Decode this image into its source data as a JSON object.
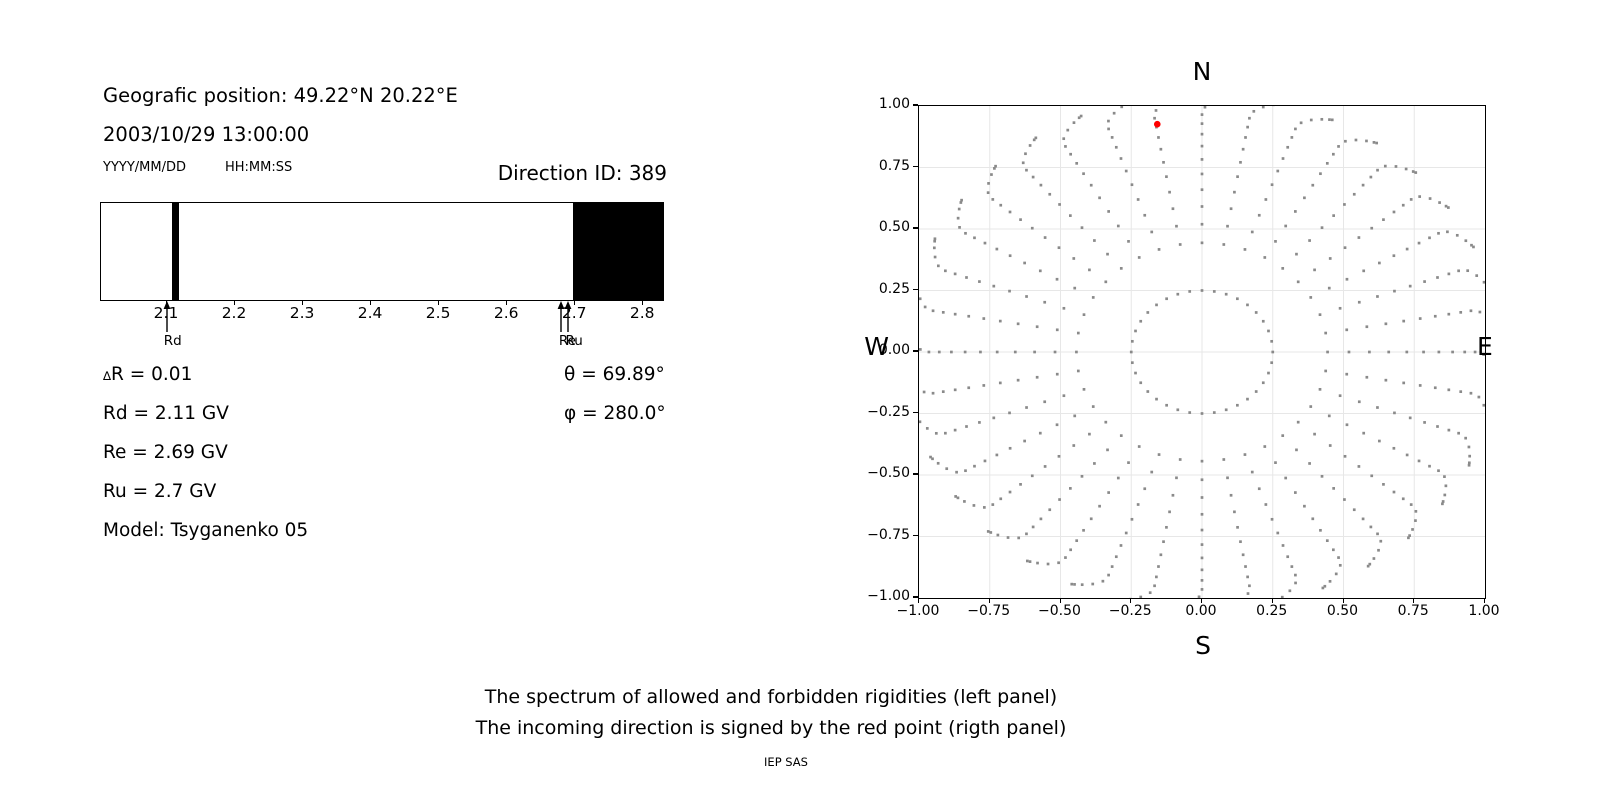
{
  "header": {
    "geo_position": "Geografic position: 49.22°N 20.22°E",
    "datetime": "2003/10/29 13:00:00",
    "date_format_label": "YYYY/MM/DD",
    "time_format_label": "HH:MM:SS",
    "direction_id_label": "Direction ID: 389"
  },
  "parameters": {
    "left": [
      {
        "symbol_small": "∆",
        "text": "R = 0.01"
      },
      {
        "symbol_small": "",
        "text": "Rd = 2.11 GV"
      },
      {
        "symbol_small": "",
        "text": "Re = 2.69 GV"
      },
      {
        "symbol_small": "",
        "text": "Ru = 2.7 GV"
      },
      {
        "symbol_small": "",
        "text": "Model: Tsyganenko 05"
      }
    ],
    "right": [
      {
        "text": "θ = 69.89°"
      },
      {
        "text": "φ = 280.0°"
      }
    ]
  },
  "caption": {
    "line1": "The spectrum of allowed and forbidden rigidities (left panel)",
    "line2": "The incoming direction is signed by the red point (rigth panel)",
    "credit": "IEP SAS"
  },
  "chart_data": [
    {
      "id": "rigidity-spectrum",
      "type": "bar",
      "description": "Spectrum of allowed (white) and forbidden (black) rigidities",
      "xlim": [
        2.003,
        2.832
      ],
      "xticks": [
        2.1,
        2.2,
        2.3,
        2.4,
        2.5,
        2.6,
        2.7,
        2.8
      ],
      "tick_decimals": 1,
      "forbidden_bands": [
        [
          2.107,
          2.118
        ],
        [
          2.697,
          2.832
        ]
      ],
      "band_color": "#000000",
      "annotations": [
        {
          "label": "Rd",
          "x": 2.11
        },
        {
          "label": "Re",
          "x": 2.69
        },
        {
          "label": "Ru",
          "x": 2.7
        }
      ]
    },
    {
      "id": "incoming-direction",
      "type": "scatter",
      "description": "Grid of arrival directions; red point marks the incoming direction",
      "xlim": [
        -1.0,
        1.0
      ],
      "ylim": [
        -1.0,
        1.0
      ],
      "xticks": [
        -1.0,
        -0.75,
        -0.5,
        -0.25,
        0.0,
        0.25,
        0.5,
        0.75,
        1.0
      ],
      "yticks": [
        -1.0,
        -0.75,
        -0.5,
        -0.25,
        0.0,
        0.25,
        0.5,
        0.75,
        1.0
      ],
      "tick_decimals": 2,
      "grid": true,
      "grid_color": "#e7e7e7",
      "compass": {
        "top": "N",
        "bottom": "S",
        "left": "W",
        "right": "E"
      },
      "dot_color": "#8a8a8a",
      "dot_size_px": 2.7,
      "pattern": {
        "inner_ring": {
          "radius": 0.25,
          "count": 36
        },
        "spokes": {
          "count": 36,
          "azimuth_step_deg": 10,
          "zenith_start_deg": 25,
          "zenith_end_deg": 90,
          "points_per_spoke": 15,
          "radius_scale": 1.05,
          "tip_drift_deg": 6,
          "drift_onset_radius": 0.97
        }
      },
      "red_point": {
        "x": -0.158,
        "y": 0.926,
        "color": "#ff0000",
        "radius_px": 3.3
      }
    }
  ]
}
